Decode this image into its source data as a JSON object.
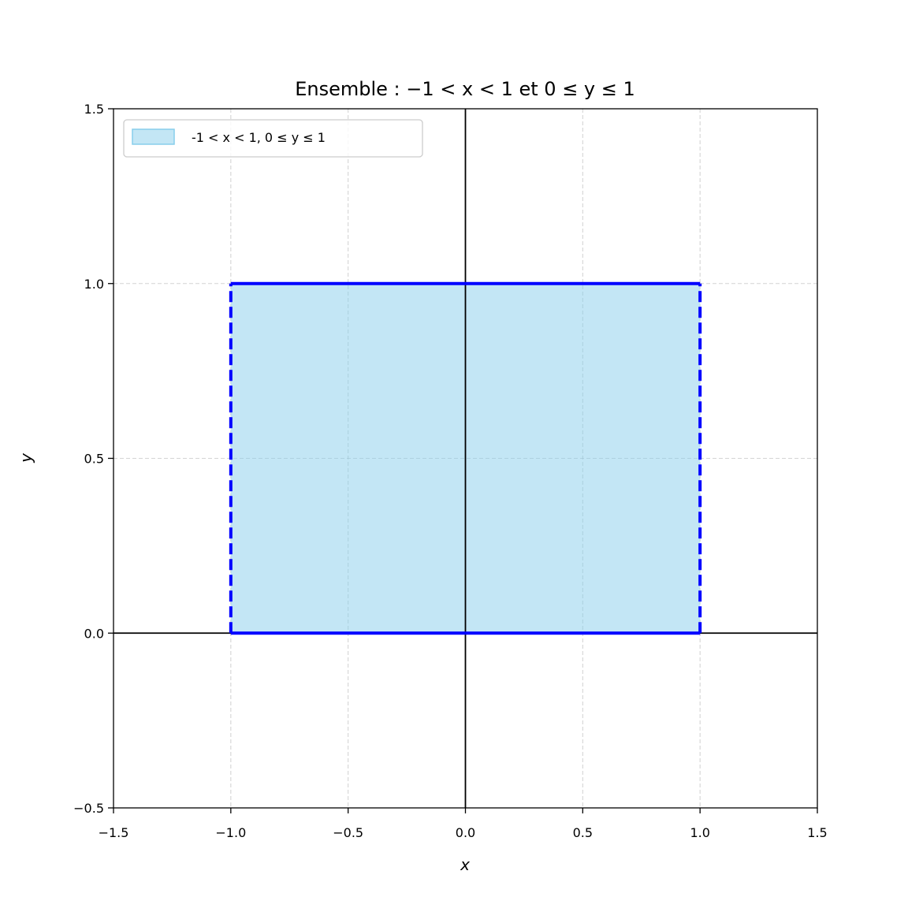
{
  "chart_data": {
    "type": "area",
    "title": "Ensemble : −1 < x < 1 et 0 ≤ y ≤ 1",
    "xlabel": "x",
    "ylabel": "y",
    "xlim": [
      -1.5,
      1.5
    ],
    "ylim": [
      -0.5,
      1.5
    ],
    "xticks": [
      -1.5,
      -1.0,
      -0.5,
      0.0,
      0.5,
      1.0,
      1.5
    ],
    "yticks": [
      -0.5,
      0.0,
      0.5,
      1.0,
      1.5
    ],
    "xtick_labels": [
      "−1.5",
      "−1.0",
      "−0.5",
      "0.0",
      "0.5",
      "1.0",
      "1.5"
    ],
    "ytick_labels": [
      "−0.5",
      "0.0",
      "0.5",
      "1.0",
      "1.5"
    ],
    "grid": true,
    "grid_values_x": [
      -1.0,
      -0.5,
      0.5,
      1.0
    ],
    "grid_values_y": [
      0.5,
      1.0
    ],
    "legend_position": "top-left",
    "region": {
      "name": "-1 < x < 1, 0 ≤ y ≤ 1",
      "x_min": -1,
      "x_max": 1,
      "y_min": 0,
      "y_max": 1,
      "fill_color": "#87ceeb",
      "fill_opacity": 0.5,
      "edge_color": "#0000ff",
      "top_edge": "solid",
      "bottom_edge": "solid",
      "left_edge": "dashed",
      "right_edge": "dashed"
    }
  }
}
